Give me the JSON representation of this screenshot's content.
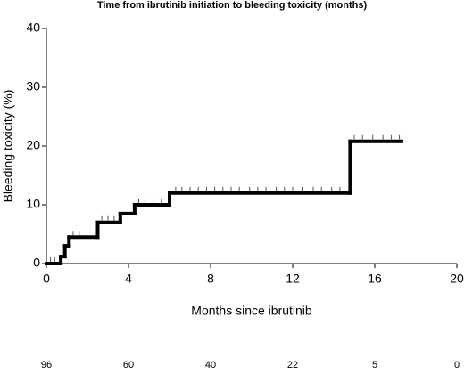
{
  "chart_data": {
    "type": "line",
    "title": "Time from ibrutinib initiation to bleeding toxicity (months)",
    "x_label": "Months since ibrutinib",
    "y_label": "Bleeding toxicity (%)",
    "xlim": [
      0,
      20
    ],
    "xticks": [
      0,
      4,
      8,
      12,
      16,
      20
    ],
    "ylim": [
      0,
      40
    ],
    "yticks": [
      0,
      10,
      20,
      30,
      40
    ],
    "step": "post",
    "series": [
      {
        "name": "Bleeding toxicity",
        "color": "#000000",
        "x": [
          0,
          0.7,
          0.9,
          1.1,
          2.5,
          3.6,
          4.3,
          6,
          14.8,
          17.3
        ],
        "values": [
          0,
          1.2,
          3,
          4.5,
          7,
          8.5,
          10,
          12,
          20.8,
          20.8
        ]
      }
    ],
    "censored": {
      "x": [
        0.2,
        0.4,
        1.3,
        1.6,
        2.7,
        3.0,
        3.3,
        4.5,
        4.8,
        5.2,
        5.6,
        6.3,
        6.6,
        7.0,
        7.4,
        7.8,
        8.2,
        8.6,
        9.0,
        9.4,
        9.9,
        10.3,
        10.7,
        11.2,
        11.6,
        12.0,
        12.5,
        13.0,
        13.4,
        13.9,
        14.3,
        15.0,
        15.4,
        15.9,
        16.4,
        16.8,
        17.2
      ],
      "values": [
        0,
        0,
        4.5,
        4.5,
        7,
        7,
        7,
        10,
        10,
        10,
        10,
        12,
        12,
        12,
        12,
        12,
        12,
        12,
        12,
        12,
        12,
        12,
        12,
        12,
        12,
        12,
        12,
        12,
        12,
        12,
        12,
        20.8,
        20.8,
        20.8,
        20.8,
        20.8,
        20.8
      ]
    },
    "at_risk": [
      96,
      60,
      40,
      22,
      5,
      0
    ]
  }
}
